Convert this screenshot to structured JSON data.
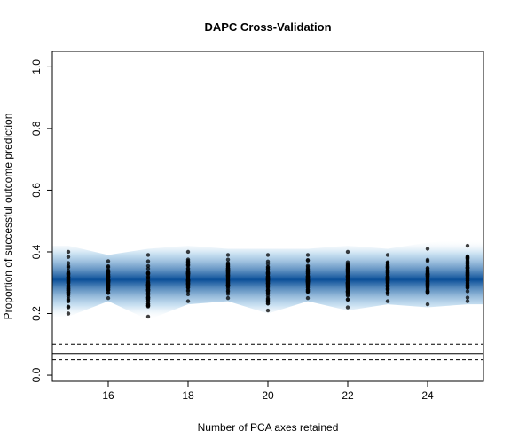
{
  "chart_data": {
    "type": "scatter",
    "title": "DAPC Cross-Validation",
    "xlabel": "Number of PCA axes retained",
    "ylabel": "Proportion of successful outcome prediction",
    "xlim": [
      14.6,
      25.4
    ],
    "ylim": [
      -0.02,
      1.05
    ],
    "x_ticks": [
      16,
      18,
      20,
      22,
      24
    ],
    "y_ticks": [
      0.0,
      0.2,
      0.4,
      0.6,
      0.8,
      1.0
    ],
    "grid": false,
    "point_color": "#000000",
    "density_color": "#1b6fb5",
    "series": [
      {
        "x": 15,
        "min": 0.2,
        "max": 0.4,
        "mean": 0.3
      },
      {
        "x": 16,
        "min": 0.25,
        "max": 0.37,
        "mean": 0.3
      },
      {
        "x": 17,
        "min": 0.19,
        "max": 0.39,
        "mean": 0.29
      },
      {
        "x": 18,
        "min": 0.24,
        "max": 0.4,
        "mean": 0.3
      },
      {
        "x": 19,
        "min": 0.25,
        "max": 0.39,
        "mean": 0.31
      },
      {
        "x": 20,
        "min": 0.21,
        "max": 0.39,
        "mean": 0.31
      },
      {
        "x": 21,
        "min": 0.25,
        "max": 0.39,
        "mean": 0.31
      },
      {
        "x": 22,
        "min": 0.22,
        "max": 0.4,
        "mean": 0.31
      },
      {
        "x": 23,
        "min": 0.24,
        "max": 0.39,
        "mean": 0.31
      },
      {
        "x": 24,
        "min": 0.23,
        "max": 0.41,
        "mean": 0.31
      },
      {
        "x": 25,
        "min": 0.24,
        "max": 0.42,
        "mean": 0.31
      }
    ],
    "reference_lines": [
      {
        "y": 0.1,
        "style": "dashed"
      },
      {
        "y": 0.07,
        "style": "solid"
      },
      {
        "y": 0.05,
        "style": "dashed"
      }
    ]
  }
}
